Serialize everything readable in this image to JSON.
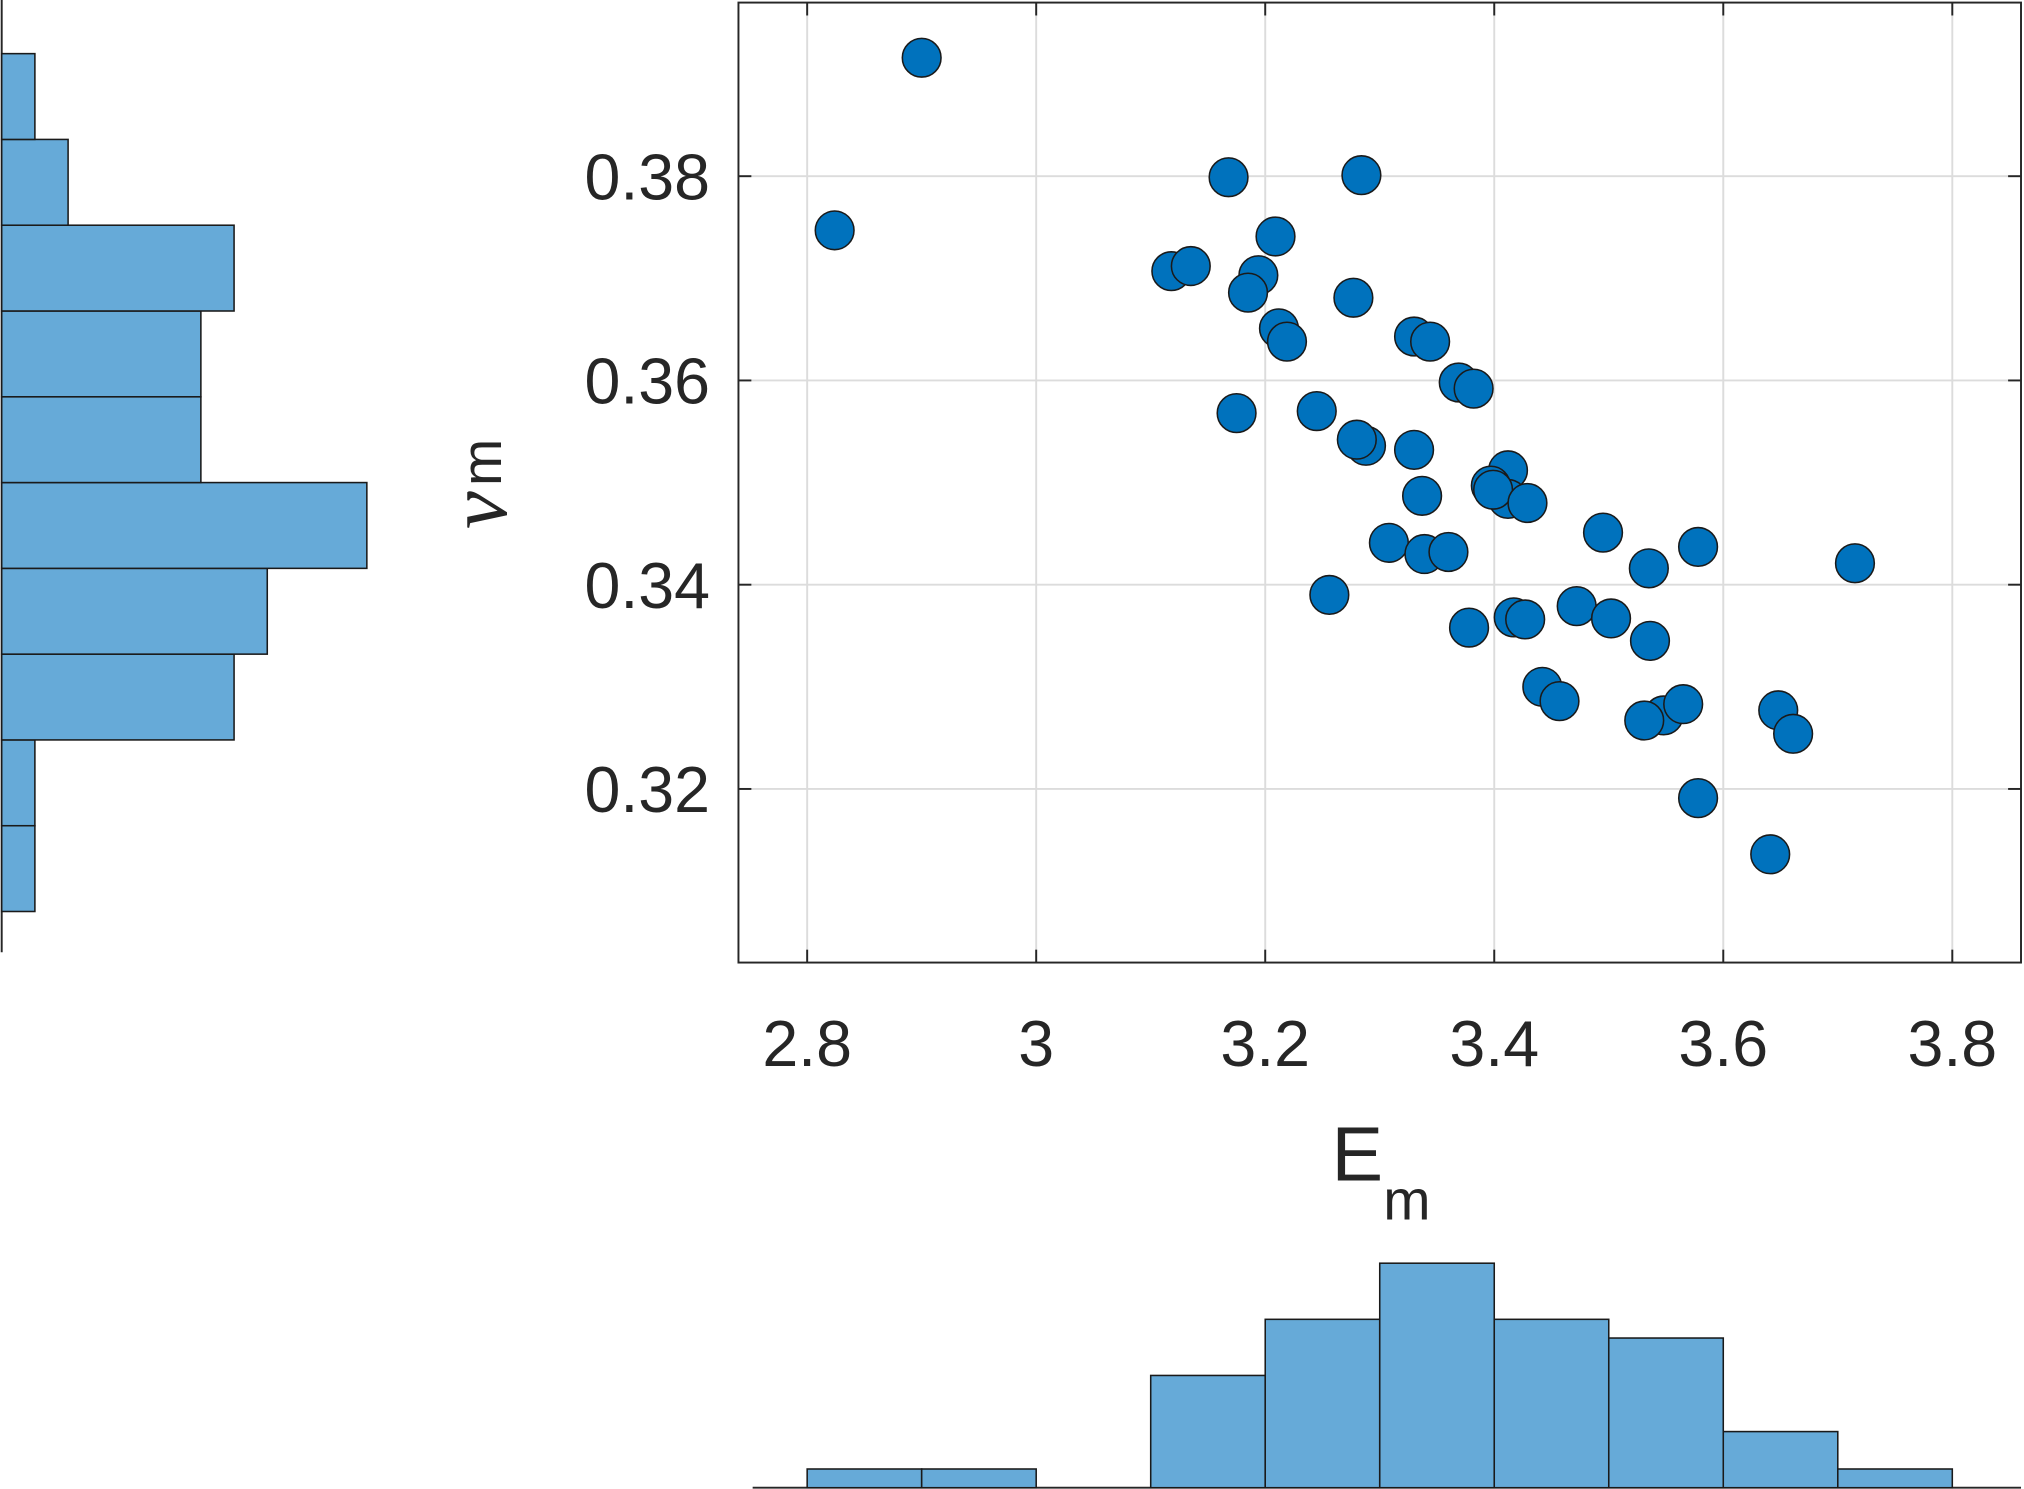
{
  "chart_data": [
    {
      "type": "scatter",
      "x_label": "E",
      "x_label_subscript": "m",
      "y_label": "ν",
      "y_label_subscript": "m",
      "color": "#0072bd",
      "grid": true,
      "xlim": [
        2.74,
        3.86
      ],
      "xticks": [
        2.8,
        3,
        3.2,
        3.4,
        3.6,
        3.8
      ],
      "ylim": [
        0.303,
        0.397
      ],
      "yticks": [
        0.32,
        0.34,
        0.36,
        0.38
      ],
      "x": [
        2.824,
        2.9,
        3.168,
        3.284,
        3.209,
        3.118,
        3.135,
        3.194,
        3.185,
        3.277,
        3.212,
        3.219,
        3.33,
        3.344,
        3.369,
        3.382,
        3.175,
        3.245,
        3.288,
        3.28,
        3.33,
        3.412,
        3.397,
        3.412,
        3.399,
        3.429,
        3.337,
        3.495,
        3.308,
        3.339,
        3.36,
        3.535,
        3.578,
        3.715,
        3.256,
        3.472,
        3.502,
        3.417,
        3.427,
        3.378,
        3.536,
        3.442,
        3.457,
        3.548,
        3.531,
        3.565,
        3.648,
        3.661,
        3.578,
        3.641
      ],
      "y": [
        0.3747,
        0.3916,
        0.3799,
        0.3801,
        0.3741,
        0.3707,
        0.3712,
        0.3703,
        0.3686,
        0.3681,
        0.3651,
        0.3638,
        0.3643,
        0.3638,
        0.3598,
        0.3592,
        0.3568,
        0.357,
        0.3536,
        0.3542,
        0.3532,
        0.3512,
        0.3497,
        0.3484,
        0.3493,
        0.348,
        0.3487,
        0.3451,
        0.3441,
        0.343,
        0.3432,
        0.3416,
        0.3437,
        0.3421,
        0.339,
        0.3379,
        0.3367,
        0.3368,
        0.3366,
        0.3358,
        0.3345,
        0.33,
        0.3286,
        0.3272,
        0.3267,
        0.3283,
        0.3277,
        0.3254,
        0.3191,
        0.3136
      ]
    },
    {
      "type": "histogram",
      "orientation": "vertical",
      "color": "#66aad8",
      "bins": [
        2.8,
        2.9,
        3.0,
        3.1,
        3.2,
        3.3,
        3.4,
        3.5,
        3.6,
        3.7,
        3.8
      ],
      "values": [
        1,
        1,
        0,
        6,
        9,
        12,
        9,
        8,
        3,
        1
      ]
    },
    {
      "type": "histogram",
      "orientation": "horizontal",
      "color": "#66aad8",
      "bins": [
        0.308,
        0.3164,
        0.3248,
        0.3332,
        0.3416,
        0.35,
        0.3584,
        0.3668,
        0.3752,
        0.3836,
        0.392
      ],
      "values": [
        1,
        1,
        7,
        8,
        11,
        6,
        6,
        7,
        2,
        1
      ]
    }
  ]
}
